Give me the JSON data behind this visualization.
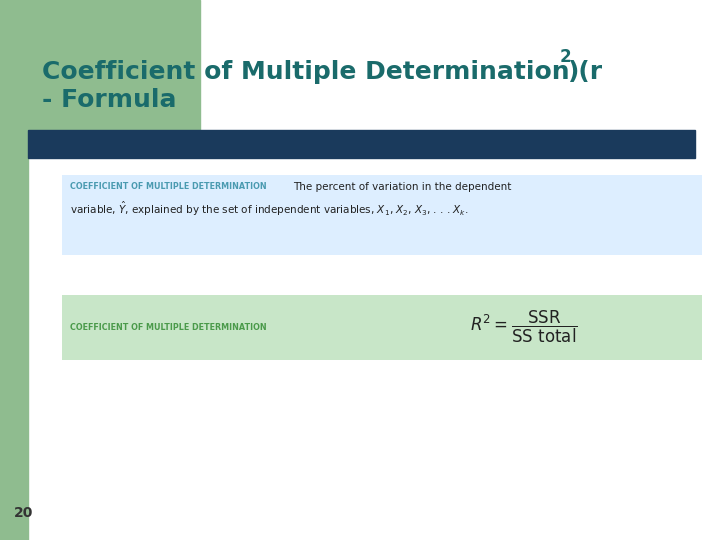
{
  "title_color": "#1a6b6b",
  "title_fontsize": 18,
  "slide_number": "20",
  "bg_color": "#ffffff",
  "left_bar_color": "#8fbc8f",
  "top_bar_color": "#1a3a5c",
  "def_box_color": "#ddeeff",
  "def_label": "COEFFICIENT OF MULTIPLE DETERMINATION",
  "def_label_color": "#4a9ab0",
  "def_text_color": "#222222",
  "formula_box_color": "#c8e6c8",
  "formula_label": "COEFFICIENT OF MULTIPLE DETERMINATION",
  "formula_label_color": "#4a9a4a",
  "formula_text_color": "#222222"
}
